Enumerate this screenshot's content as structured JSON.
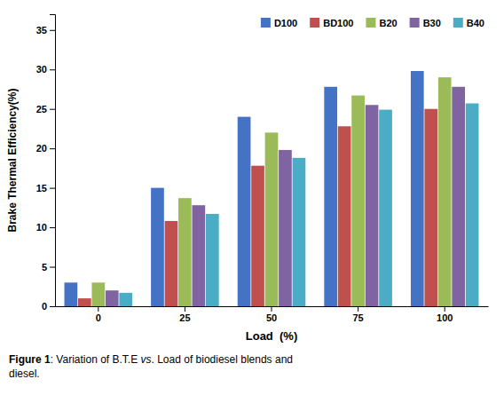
{
  "chart_data": {
    "type": "bar",
    "xlabel": "Load  (%)",
    "ylabel": "Brake Thermal Efficiency(%)",
    "categories": [
      "0",
      "25",
      "50",
      "75",
      "100"
    ],
    "series": [
      {
        "name": "D100",
        "color": "#4472C4",
        "values": [
          3.0,
          15.0,
          24.0,
          27.8,
          29.8
        ]
      },
      {
        "name": "BD100",
        "color": "#C0504D",
        "values": [
          1.0,
          10.8,
          17.8,
          22.8,
          25.0
        ]
      },
      {
        "name": "B20",
        "color": "#9BBB59",
        "values": [
          3.0,
          13.7,
          22.0,
          26.7,
          29.0
        ]
      },
      {
        "name": "B30",
        "color": "#8064A2",
        "values": [
          2.0,
          12.8,
          19.8,
          25.5,
          27.8
        ]
      },
      {
        "name": "B40",
        "color": "#4BACC6",
        "values": [
          1.7,
          11.7,
          18.8,
          24.9,
          25.7
        ]
      }
    ],
    "ylim": [
      0,
      37
    ],
    "yticks": [
      0,
      5,
      10,
      15,
      20,
      25,
      30,
      35
    ],
    "grid": false,
    "legend": "upper right",
    "annotations": [
      "Figure 1",
      ": Variation of B.T.E ",
      "vs",
      ". Load of biodiesel blends and",
      "diesel."
    ]
  }
}
